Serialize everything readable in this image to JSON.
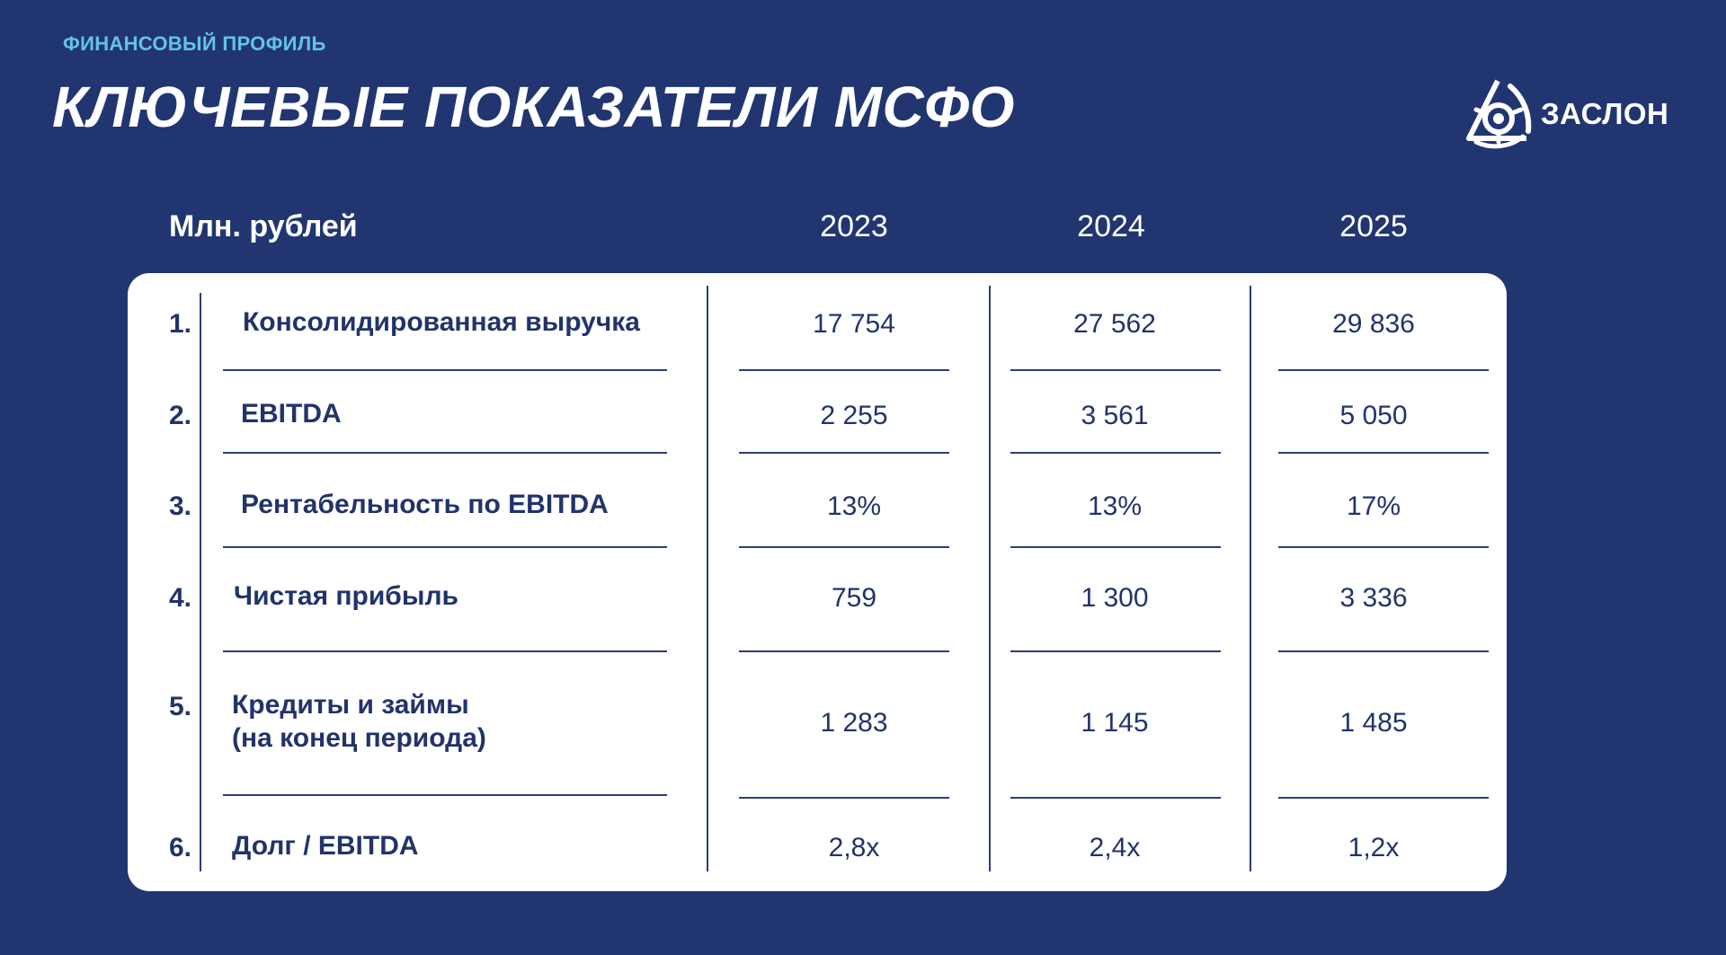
{
  "header": {
    "eyebrow": "ФИНАНСОВЫЙ ПРОФИЛЬ",
    "title": "КЛЮЧЕВЫЕ ПОКАЗАТЕЛИ МСФО"
  },
  "logo": {
    "text": "ЗАСЛОН",
    "icon": "zaslon-logo-icon"
  },
  "table": {
    "unit_label": "Млн. рублей",
    "years": [
      "2023",
      "2024",
      "2025"
    ],
    "rows": [
      {
        "num": "1.",
        "label_1": "Консолидированная выручка",
        "label_2": "",
        "values": [
          "17 754",
          "27 562",
          "29 836"
        ]
      },
      {
        "num": "2.",
        "label_1": "EBITDA",
        "label_2": "",
        "values": [
          "2 255",
          "3 561",
          "5 050"
        ]
      },
      {
        "num": "3.",
        "label_1": "Рентабельность по EBITDA",
        "label_2": "",
        "values": [
          "13%",
          "13%",
          "17%"
        ]
      },
      {
        "num": "4.",
        "label_1": "Чистая прибыль",
        "label_2": "",
        "values": [
          "759",
          "1 300",
          "3 336"
        ]
      },
      {
        "num": "5.",
        "label_1": "Кредиты и займы",
        "label_2": "(на конец периода)",
        "values": [
          "1 283",
          "1 145",
          "1 485"
        ]
      },
      {
        "num": "6.",
        "label_1": "Долг / EBITDA",
        "label_2": "",
        "values": [
          "2,8x",
          "2,4x",
          "1,2x"
        ]
      }
    ]
  },
  "colors": {
    "background": "#213571",
    "accent": "#62c4e4",
    "card": "#ffffff",
    "text_dark": "#22336b"
  }
}
